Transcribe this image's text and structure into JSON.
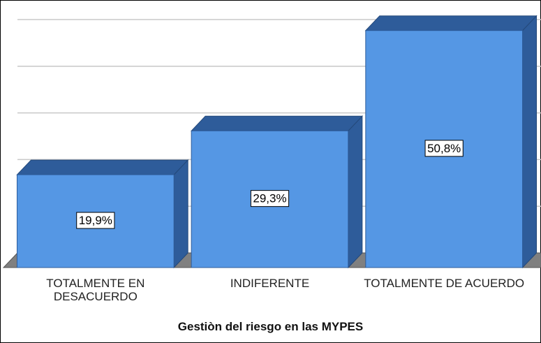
{
  "chart_data": {
    "type": "bar3d",
    "x_label": "Gestiòn del riesgo en las MYPES",
    "categories": [
      "TOTALMENTE EN DESACUERDO",
      "INDIFERENTE",
      "TOTALMENTE DE ACUERDO"
    ],
    "values": [
      19.9,
      29.3,
      50.8
    ],
    "value_labels": [
      "19,9%",
      "29,3%",
      "50,8%"
    ],
    "color": "#5597e4",
    "shade_color": "#2e5c9a",
    "ylim": [
      0,
      53
    ],
    "yticks": [
      10,
      20,
      30,
      40,
      50
    ],
    "grid": true
  }
}
